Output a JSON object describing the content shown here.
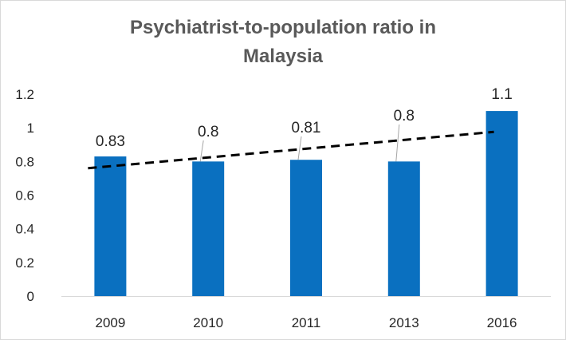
{
  "chart_data": {
    "type": "bar",
    "title_lines": [
      "Psychiatrist-to-population  ratio  in",
      "Malaysia"
    ],
    "categories": [
      "2009",
      "2010",
      "2011",
      "2013",
      "2016"
    ],
    "values": [
      0.83,
      0.8,
      0.81,
      0.8,
      1.1
    ],
    "data_labels": [
      "0.83",
      "0.8",
      "0.81",
      "0.8",
      "1.1"
    ],
    "ylim": [
      0,
      1.2
    ],
    "yticks": [
      "0",
      "0.2",
      "0.4",
      "0.6",
      "0.8",
      "1",
      "1.2"
    ],
    "grid": false,
    "trendline": {
      "type": "linear",
      "style": "dashed",
      "color": "#000000"
    },
    "bar_color": "#0a70c0"
  }
}
